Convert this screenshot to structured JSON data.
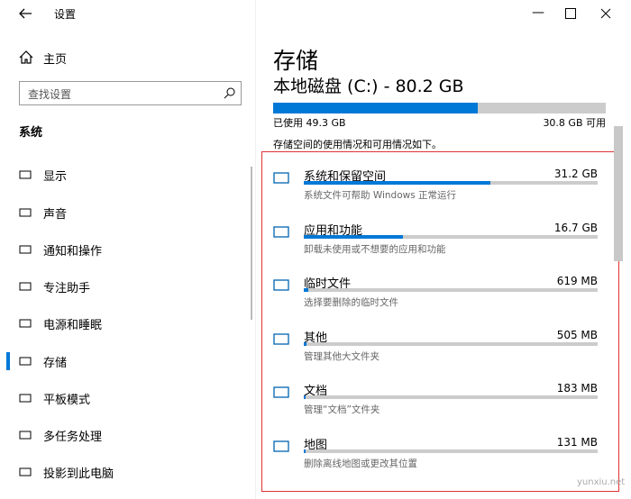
{
  "window": {
    "title": "设置"
  },
  "sidebar": {
    "home": "主页",
    "search_placeholder": "查找设置",
    "section": "系统",
    "items": [
      "显示",
      "声音",
      "通知和操作",
      "专注助手",
      "电源和睡眠",
      "存储",
      "平板模式",
      "多任务处理",
      "投影到此电脑"
    ]
  },
  "main": {
    "title": "存储",
    "drive": "本地磁盘 (C:) - 80.2 GB",
    "used": "已使用 49.3 GB",
    "free": "30.8 GB 可用",
    "intro": "存储空间的使用情况和可用情况如下。",
    "categories": [
      {
        "name": "系统和保留空间",
        "size": "31.2 GB",
        "desc": "系统文件可帮助 Windows 正常运行"
      },
      {
        "name": "应用和功能",
        "size": "16.7 GB",
        "desc": "卸载未使用或不想要的应用和功能"
      },
      {
        "name": "临时文件",
        "size": "619 MB",
        "desc": "选择要删除的临时文件"
      },
      {
        "name": "其他",
        "size": "505 MB",
        "desc": "管理其他大文件夹"
      },
      {
        "name": "文档",
        "size": "183 MB",
        "desc": "管理“文档”文件夹"
      },
      {
        "name": "地图",
        "size": "131 MB",
        "desc": "删除离线地图或更改其位置"
      }
    ]
  },
  "watermark": "yunxiu.net"
}
